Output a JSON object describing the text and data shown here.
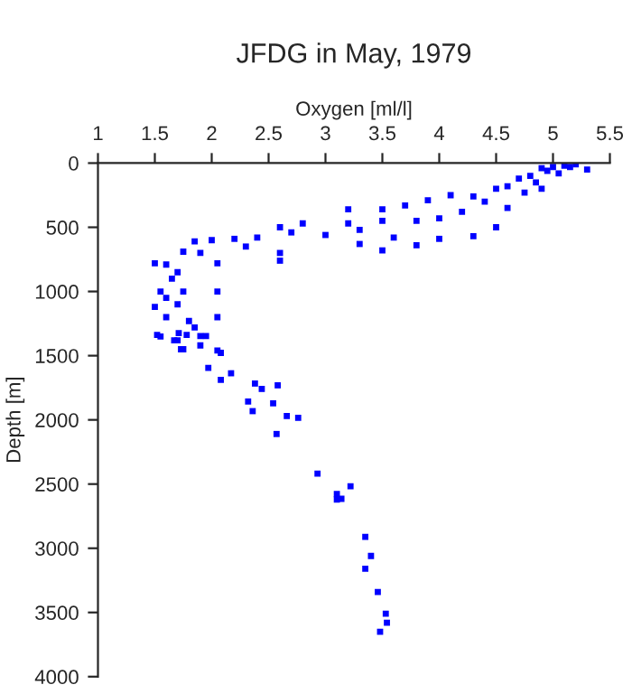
{
  "chart_data": {
    "type": "scatter",
    "title": "JFDG in May, 1979",
    "xlabel": "Oxygen [ml/l]",
    "ylabel": "Depth [m]",
    "xlim": [
      1,
      5.5
    ],
    "xticks": [
      1,
      1.5,
      2,
      2.5,
      3,
      3.5,
      4,
      4.5,
      5,
      5.5
    ],
    "ylim": [
      4000,
      0
    ],
    "yticks": [
      0,
      500,
      1000,
      1500,
      2000,
      2500,
      3000,
      3500,
      4000
    ],
    "marker": "square",
    "grid": false,
    "legend": false,
    "series": [
      {
        "color": "#0000ff",
        "x": [
          5.2,
          5.1,
          5.0,
          4.9,
          5.3,
          4.95,
          5.05,
          4.8,
          4.7,
          5.15,
          4.85,
          4.6,
          4.5,
          4.9,
          4.75,
          4.3,
          4.1,
          4.4,
          3.9,
          3.7,
          3.5,
          3.2,
          4.6,
          4.2,
          4.0,
          3.8,
          3.5,
          3.2,
          2.8,
          2.6,
          2.7,
          2.4,
          2.2,
          2.0,
          1.85,
          1.9,
          1.75,
          2.3,
          2.6,
          3.0,
          3.3,
          3.3,
          3.5,
          3.8,
          4.0,
          4.3,
          4.5,
          3.6,
          2.6,
          2.05,
          1.6,
          1.5,
          1.7,
          1.65,
          1.55,
          1.6,
          1.7,
          1.5,
          1.6,
          1.8,
          1.85,
          1.55,
          1.7,
          1.9,
          1.75,
          2.05,
          2.05,
          1.75,
          1.52,
          1.71,
          1.67,
          1.73,
          1.78,
          1.9,
          1.95,
          2.05,
          2.08,
          1.97,
          2.17,
          2.08,
          2.38,
          2.44,
          2.58,
          2.32,
          2.36,
          2.54,
          2.66,
          2.76,
          2.57,
          2.93,
          3.1,
          3.1,
          3.14,
          3.22,
          3.35,
          3.4,
          3.35,
          3.46,
          3.53,
          3.48,
          3.54
        ],
        "values": [
          10,
          20,
          30,
          40,
          50,
          60,
          80,
          100,
          120,
          30,
          150,
          180,
          200,
          200,
          230,
          260,
          250,
          300,
          290,
          330,
          360,
          360,
          350,
          380,
          430,
          450,
          450,
          470,
          470,
          500,
          540,
          580,
          590,
          600,
          610,
          700,
          690,
          650,
          700,
          560,
          520,
          630,
          680,
          640,
          590,
          570,
          500,
          580,
          760,
          780,
          790,
          780,
          850,
          900,
          1000,
          1050,
          1100,
          1120,
          1200,
          1230,
          1280,
          1350,
          1380,
          1420,
          1450,
          1000,
          1200,
          1000,
          1338,
          1324,
          1380,
          1450,
          1338,
          1347,
          1347,
          1460,
          1478,
          1595,
          1637,
          1689,
          1717,
          1759,
          1731,
          1857,
          1932,
          1871,
          1970,
          1984,
          2110,
          2418,
          2578,
          2620,
          2615,
          2517,
          2912,
          3060,
          3160,
          3340,
          3510,
          3650,
          3580
        ]
      }
    ]
  }
}
